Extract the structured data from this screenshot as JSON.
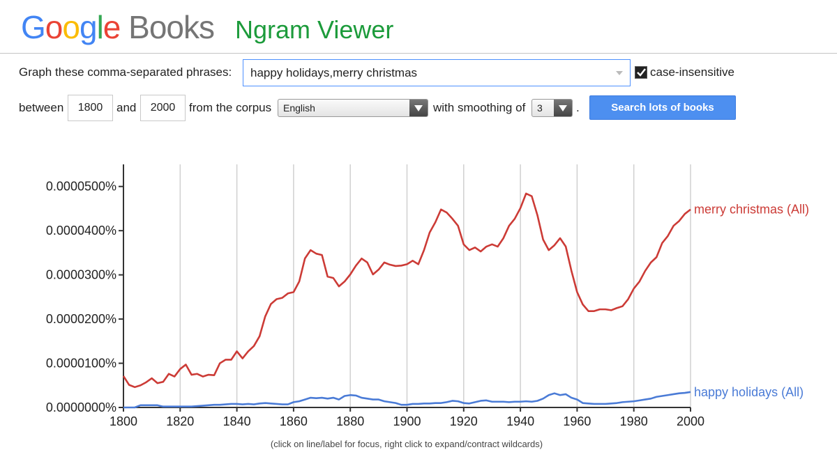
{
  "header": {
    "logo_google": "Google",
    "logo_books": "Books",
    "title": "Ngram Viewer"
  },
  "form": {
    "phrases_label": "Graph these comma-separated phrases:",
    "phrases": "happy holidays,merry christmas",
    "case_insensitive": true,
    "case_insensitive_label": "case-insensitive",
    "between_label": "between",
    "start_year": 1800,
    "and_label": "and",
    "end_year": 2000,
    "corpus_label": "from the corpus",
    "corpus": "English",
    "smoothing_label": "with smoothing of",
    "smoothing": 3,
    "period": ".",
    "button": "Search lots of books"
  },
  "chart_data": {
    "type": "line",
    "x": [
      1800,
      1802,
      1804,
      1806,
      1808,
      1810,
      1812,
      1814,
      1816,
      1818,
      1820,
      1822,
      1824,
      1826,
      1828,
      1830,
      1832,
      1834,
      1836,
      1838,
      1840,
      1842,
      1844,
      1846,
      1848,
      1850,
      1852,
      1854,
      1856,
      1858,
      1860,
      1862,
      1864,
      1866,
      1868,
      1870,
      1872,
      1874,
      1876,
      1878,
      1880,
      1882,
      1884,
      1886,
      1888,
      1890,
      1892,
      1894,
      1896,
      1898,
      1900,
      1902,
      1904,
      1906,
      1908,
      1910,
      1912,
      1914,
      1916,
      1918,
      1920,
      1922,
      1924,
      1926,
      1928,
      1930,
      1932,
      1934,
      1936,
      1938,
      1940,
      1942,
      1944,
      1946,
      1948,
      1950,
      1952,
      1954,
      1956,
      1958,
      1960,
      1962,
      1964,
      1966,
      1968,
      1970,
      1972,
      1974,
      1976,
      1978,
      1980,
      1982,
      1984,
      1986,
      1988,
      1990,
      1992,
      1994,
      1996,
      1998,
      2000
    ],
    "series": [
      {
        "name": "merry christmas (All)",
        "color": "#cc3b36",
        "values": [
          7.1e-06,
          5.1e-06,
          4.6e-06,
          5e-06,
          5.7e-06,
          6.6e-06,
          5.5e-06,
          5.8e-06,
          7.6e-06,
          7e-06,
          8.7e-06,
          9.7e-06,
          7.4e-06,
          7.6e-06,
          7e-06,
          7.4e-06,
          7.3e-06,
          1e-05,
          1.08e-05,
          1.08e-05,
          1.27e-05,
          1.11e-05,
          1.27e-05,
          1.39e-05,
          1.61e-05,
          2.06e-05,
          2.34e-05,
          2.45e-05,
          2.48e-05,
          2.58e-05,
          2.61e-05,
          2.85e-05,
          3.37e-05,
          3.56e-05,
          3.48e-05,
          3.45e-05,
          2.96e-05,
          2.93e-05,
          2.74e-05,
          2.85e-05,
          3.01e-05,
          3.21e-05,
          3.37e-05,
          3.28e-05,
          3.01e-05,
          3.12e-05,
          3.28e-05,
          3.23e-05,
          3.2e-05,
          3.21e-05,
          3.24e-05,
          3.32e-05,
          3.24e-05,
          3.56e-05,
          3.96e-05,
          4.19e-05,
          4.48e-05,
          4.41e-05,
          4.27e-05,
          4.11e-05,
          3.69e-05,
          3.56e-05,
          3.62e-05,
          3.53e-05,
          3.64e-05,
          3.69e-05,
          3.64e-05,
          3.83e-05,
          4.11e-05,
          4.27e-05,
          4.51e-05,
          4.84e-05,
          4.78e-05,
          4.35e-05,
          3.8e-05,
          3.56e-05,
          3.67e-05,
          3.83e-05,
          3.64e-05,
          3.09e-05,
          2.61e-05,
          2.33e-05,
          2.18e-05,
          2.18e-05,
          2.22e-05,
          2.22e-05,
          2.2e-05,
          2.25e-05,
          2.29e-05,
          2.45e-05,
          2.69e-05,
          2.85e-05,
          3.09e-05,
          3.28e-05,
          3.4e-05,
          3.72e-05,
          3.88e-05,
          4.11e-05,
          4.22e-05,
          4.38e-05,
          4.48e-05
        ]
      },
      {
        "name": "happy holidays (All)",
        "color": "#4a7bd6",
        "values": [
          0,
          0,
          0,
          5e-07,
          5e-07,
          5e-07,
          5e-07,
          2e-07,
          2e-07,
          2e-07,
          2e-07,
          2e-07,
          2e-07,
          3e-07,
          4e-07,
          5e-07,
          6e-07,
          6e-07,
          7e-07,
          8e-07,
          8e-07,
          7e-07,
          8e-07,
          7e-07,
          9e-07,
          1e-06,
          9e-07,
          8e-07,
          7e-07,
          7e-07,
          1.2e-06,
          1.4e-06,
          1.8e-06,
          2.2e-06,
          2.1e-06,
          2.2e-06,
          2e-06,
          2.2e-06,
          1.8e-06,
          2.6e-06,
          2.8e-06,
          2.7e-06,
          2.2e-06,
          2e-06,
          1.8e-06,
          1.8e-06,
          1.4e-06,
          1.2e-06,
          1e-06,
          6e-07,
          6e-07,
          8e-07,
          8e-07,
          9e-07,
          9e-07,
          1e-06,
          1e-06,
          1.2e-06,
          1.5e-06,
          1.4e-06,
          1e-06,
          9e-07,
          1.2e-06,
          1.5e-06,
          1.6e-06,
          1.3e-06,
          1.3e-06,
          1.3e-06,
          1.2e-06,
          1.3e-06,
          1.3e-06,
          1.4e-06,
          1.3e-06,
          1.5e-06,
          2e-06,
          2.8e-06,
          3.2e-06,
          2.8e-06,
          3e-06,
          2.2e-06,
          1.8e-06,
          1e-06,
          9e-07,
          8e-07,
          8e-07,
          8e-07,
          9e-07,
          1e-06,
          1.2e-06,
          1.3e-06,
          1.4e-06,
          1.6e-06,
          1.8e-06,
          2e-06,
          2.4e-06,
          2.6e-06,
          2.8e-06,
          3e-06,
          3.2e-06,
          3.3e-06,
          3.5e-06
        ]
      }
    ],
    "xlim": [
      1800,
      2000
    ],
    "xticks": [
      1800,
      1820,
      1840,
      1860,
      1880,
      1900,
      1920,
      1940,
      1960,
      1980,
      2000
    ],
    "ylim": [
      0,
      5.5e-05
    ],
    "yticks": [
      {
        "value": 0,
        "label": "0.0000000%"
      },
      {
        "value": 1e-05,
        "label": "0.0000100%"
      },
      {
        "value": 2e-05,
        "label": "0.0000200%"
      },
      {
        "value": 3e-05,
        "label": "0.0000300%"
      },
      {
        "value": 4e-05,
        "label": "0.0000400%"
      },
      {
        "value": 5e-05,
        "label": "0.0000500%"
      }
    ],
    "grid": "x"
  },
  "footer_note": "(click on line/label for focus, right click to expand/contract wildcards)"
}
